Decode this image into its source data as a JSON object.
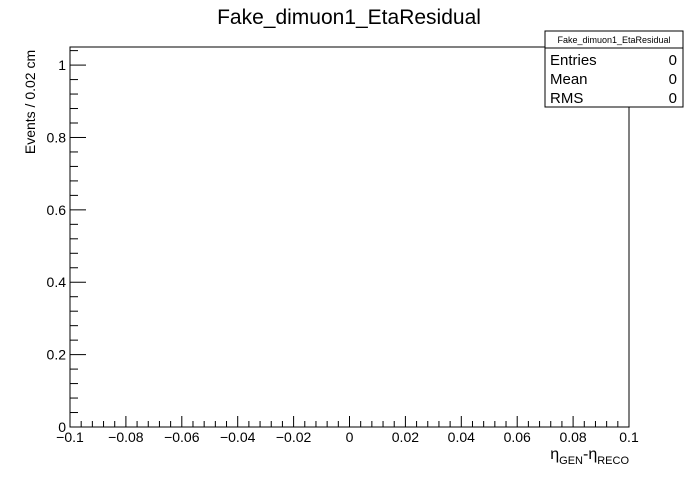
{
  "chart_data": {
    "type": "bar",
    "title": "Fake_dimuon1_EtaResidual",
    "xlabel": {
      "main": "η",
      "sub1": "GEN",
      "minus": "-η",
      "sub2": "RECO"
    },
    "ylabel": "Events / 0.02 cm",
    "xlim": [
      -0.1,
      0.1
    ],
    "ylim": [
      0,
      1.05
    ],
    "x_ticks": [
      -0.1,
      -0.08,
      -0.06,
      -0.04,
      -0.02,
      0,
      0.02,
      0.04,
      0.06,
      0.08,
      0.1
    ],
    "x_tick_labels": [
      "−0.1",
      "−0.08",
      "−0.06",
      "−0.04",
      "−0.02",
      "0",
      "0.02",
      "0.04",
      "0.06",
      "0.08",
      "0.1"
    ],
    "y_ticks": [
      0,
      0.2,
      0.4,
      0.6,
      0.8,
      1
    ],
    "y_tick_labels": [
      "0",
      "0.2",
      "0.4",
      "0.6",
      "0.8",
      "1"
    ],
    "x_minor_step": 0.004,
    "y_minor_step": 0.04,
    "grid": false,
    "values": [],
    "stats_box": {
      "title": "Fake_dimuon1_EtaResidual",
      "position": "top-right",
      "rows": [
        {
          "label": "Entries",
          "value": "0"
        },
        {
          "label": "Mean",
          "value": "0"
        },
        {
          "label": "RMS",
          "value": "0"
        }
      ]
    }
  }
}
